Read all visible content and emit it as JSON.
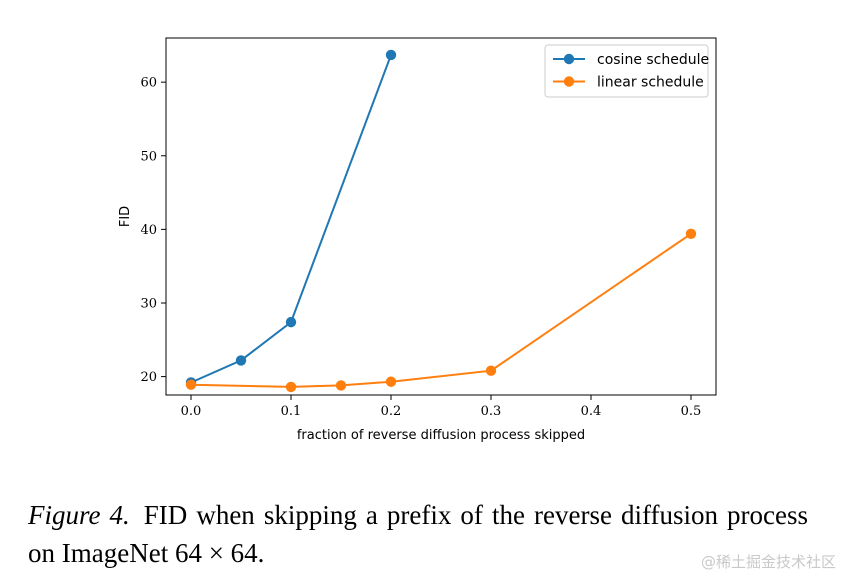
{
  "chart_data": {
    "type": "line",
    "xlabel": "fraction of reverse diffusion process skipped",
    "ylabel": "FID",
    "xlim": [
      -0.025,
      0.525
    ],
    "ylim": [
      17.5,
      66.0
    ],
    "xticks": [
      0.0,
      0.1,
      0.2,
      0.3,
      0.4,
      0.5
    ],
    "xtick_labels": [
      "0.0",
      "0.1",
      "0.2",
      "0.3",
      "0.4",
      "0.5"
    ],
    "yticks": [
      20,
      30,
      40,
      50,
      60
    ],
    "ytick_labels": [
      "20",
      "30",
      "40",
      "50",
      "60"
    ],
    "legend_position": "top-right",
    "series": [
      {
        "name": "cosine schedule",
        "color": "#1f77b4",
        "x": [
          0.0,
          0.05,
          0.1,
          0.2
        ],
        "y": [
          19.2,
          22.2,
          27.4,
          63.7
        ]
      },
      {
        "name": "linear schedule",
        "color": "#ff7f0e",
        "x": [
          0.0,
          0.1,
          0.15,
          0.2,
          0.3,
          0.5
        ],
        "y": [
          18.9,
          18.6,
          18.8,
          19.3,
          20.8,
          39.4
        ]
      }
    ]
  },
  "caption": {
    "label": "Figure 4.",
    "text": "FID when skipping a prefix of the reverse diffusion process on ImageNet 64 × 64."
  },
  "watermark": "@稀土掘金技术社区"
}
